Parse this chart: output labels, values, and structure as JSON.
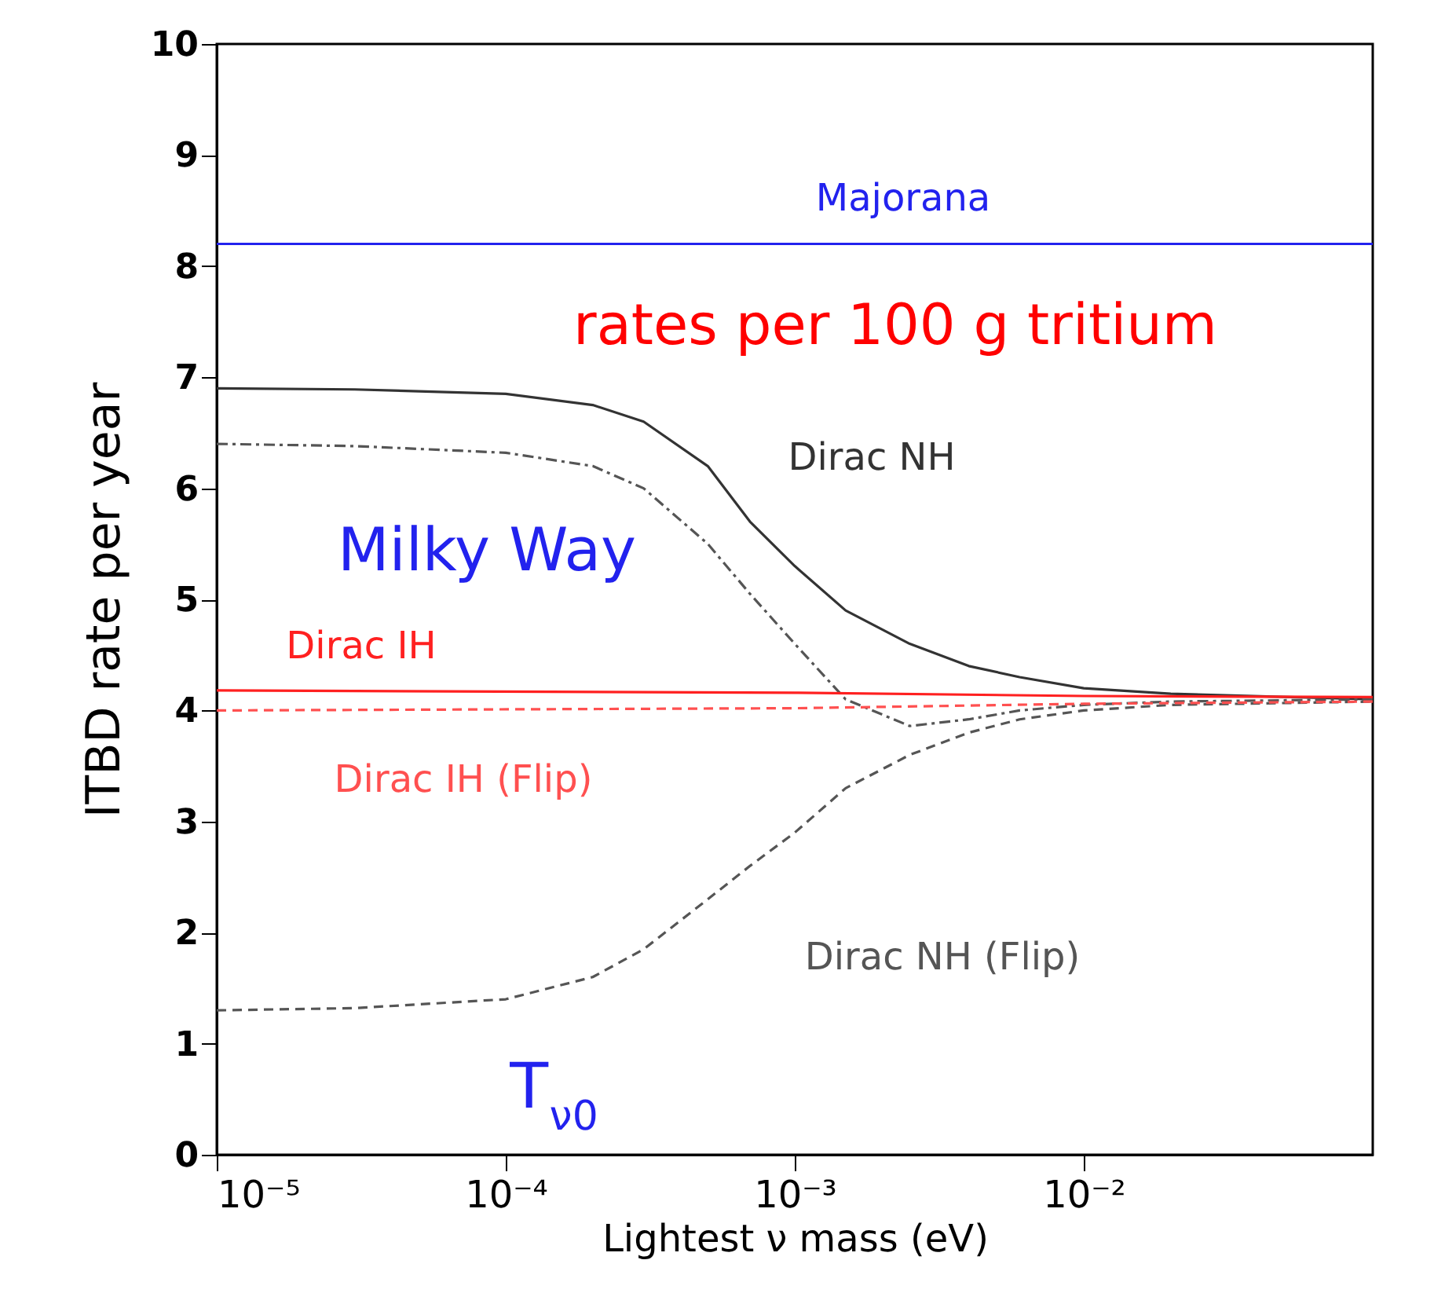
{
  "chart_data": {
    "type": "line",
    "xlabel": "Lightest ν mass (eV)",
    "ylabel": "ITBD rate per year",
    "log": "x",
    "grid": false,
    "xlim": [
      1e-05,
      0.1
    ],
    "xticks": [
      {
        "value": 1e-05,
        "label": "10⁻⁵"
      },
      {
        "value": 0.0001,
        "label": "10⁻⁴"
      },
      {
        "value": 0.001,
        "label": "10⁻³"
      },
      {
        "value": 0.01,
        "label": "10⁻²"
      }
    ],
    "ylim": [
      0,
      10
    ],
    "yticks": [
      0,
      1,
      2,
      3,
      4,
      5,
      6,
      7,
      8,
      9,
      10
    ],
    "annotations": [
      "rates per 100 g tritium",
      "Milky Way",
      "T$_{ν0}$"
    ],
    "series": [
      {
        "name": "Majorana",
        "color": "#2222ee",
        "line_style": "solid",
        "x": [
          1e-05,
          0.1
        ],
        "values": [
          8.2,
          8.2
        ]
      },
      {
        "name": "Dirac NH",
        "color": "#333333",
        "line_style": "solid",
        "x": [
          1e-05,
          3e-05,
          0.0001,
          0.0002,
          0.0003,
          0.0005,
          0.0007,
          0.001,
          0.0015,
          0.0025,
          0.004,
          0.006,
          0.01,
          0.02,
          0.1
        ],
        "values": [
          6.9,
          6.89,
          6.85,
          6.75,
          6.6,
          6.2,
          5.7,
          5.3,
          4.9,
          4.6,
          4.4,
          4.3,
          4.2,
          4.15,
          4.1
        ]
      },
      {
        "color": "#555555",
        "line_style": "dotted",
        "x": [
          1e-05,
          3e-05,
          0.0001,
          0.0002,
          0.0003,
          0.0005,
          0.0007,
          0.001,
          0.0015,
          0.0025,
          0.004,
          0.006,
          0.01,
          0.02,
          0.1
        ],
        "values": [
          6.4,
          6.38,
          6.32,
          6.2,
          6.0,
          5.5,
          5.05,
          4.6,
          4.1,
          3.86,
          3.92,
          4.0,
          4.05,
          4.08,
          4.1
        ]
      },
      {
        "name": "Dirac NH (Flip)",
        "color": "#555555",
        "line_style": "dashed",
        "x": [
          1e-05,
          3e-05,
          0.0001,
          0.0002,
          0.0003,
          0.0005,
          0.0007,
          0.001,
          0.0015,
          0.0025,
          0.004,
          0.006,
          0.01,
          0.02,
          0.1
        ],
        "values": [
          1.3,
          1.32,
          1.4,
          1.6,
          1.85,
          2.3,
          2.6,
          2.9,
          3.3,
          3.6,
          3.8,
          3.92,
          4.0,
          4.05,
          4.08
        ]
      },
      {
        "name": "Dirac IH",
        "color": "#ff2020",
        "line_style": "solid",
        "x": [
          1e-05,
          0.001,
          0.01,
          0.1
        ],
        "values": [
          4.18,
          4.16,
          4.13,
          4.12
        ]
      },
      {
        "name": "Dirac IH (Flip)",
        "color": "#ff5050",
        "line_style": "dashed",
        "x": [
          1e-05,
          0.001,
          0.01,
          0.1
        ],
        "values": [
          4.0,
          4.02,
          4.06,
          4.08
        ]
      }
    ]
  }
}
